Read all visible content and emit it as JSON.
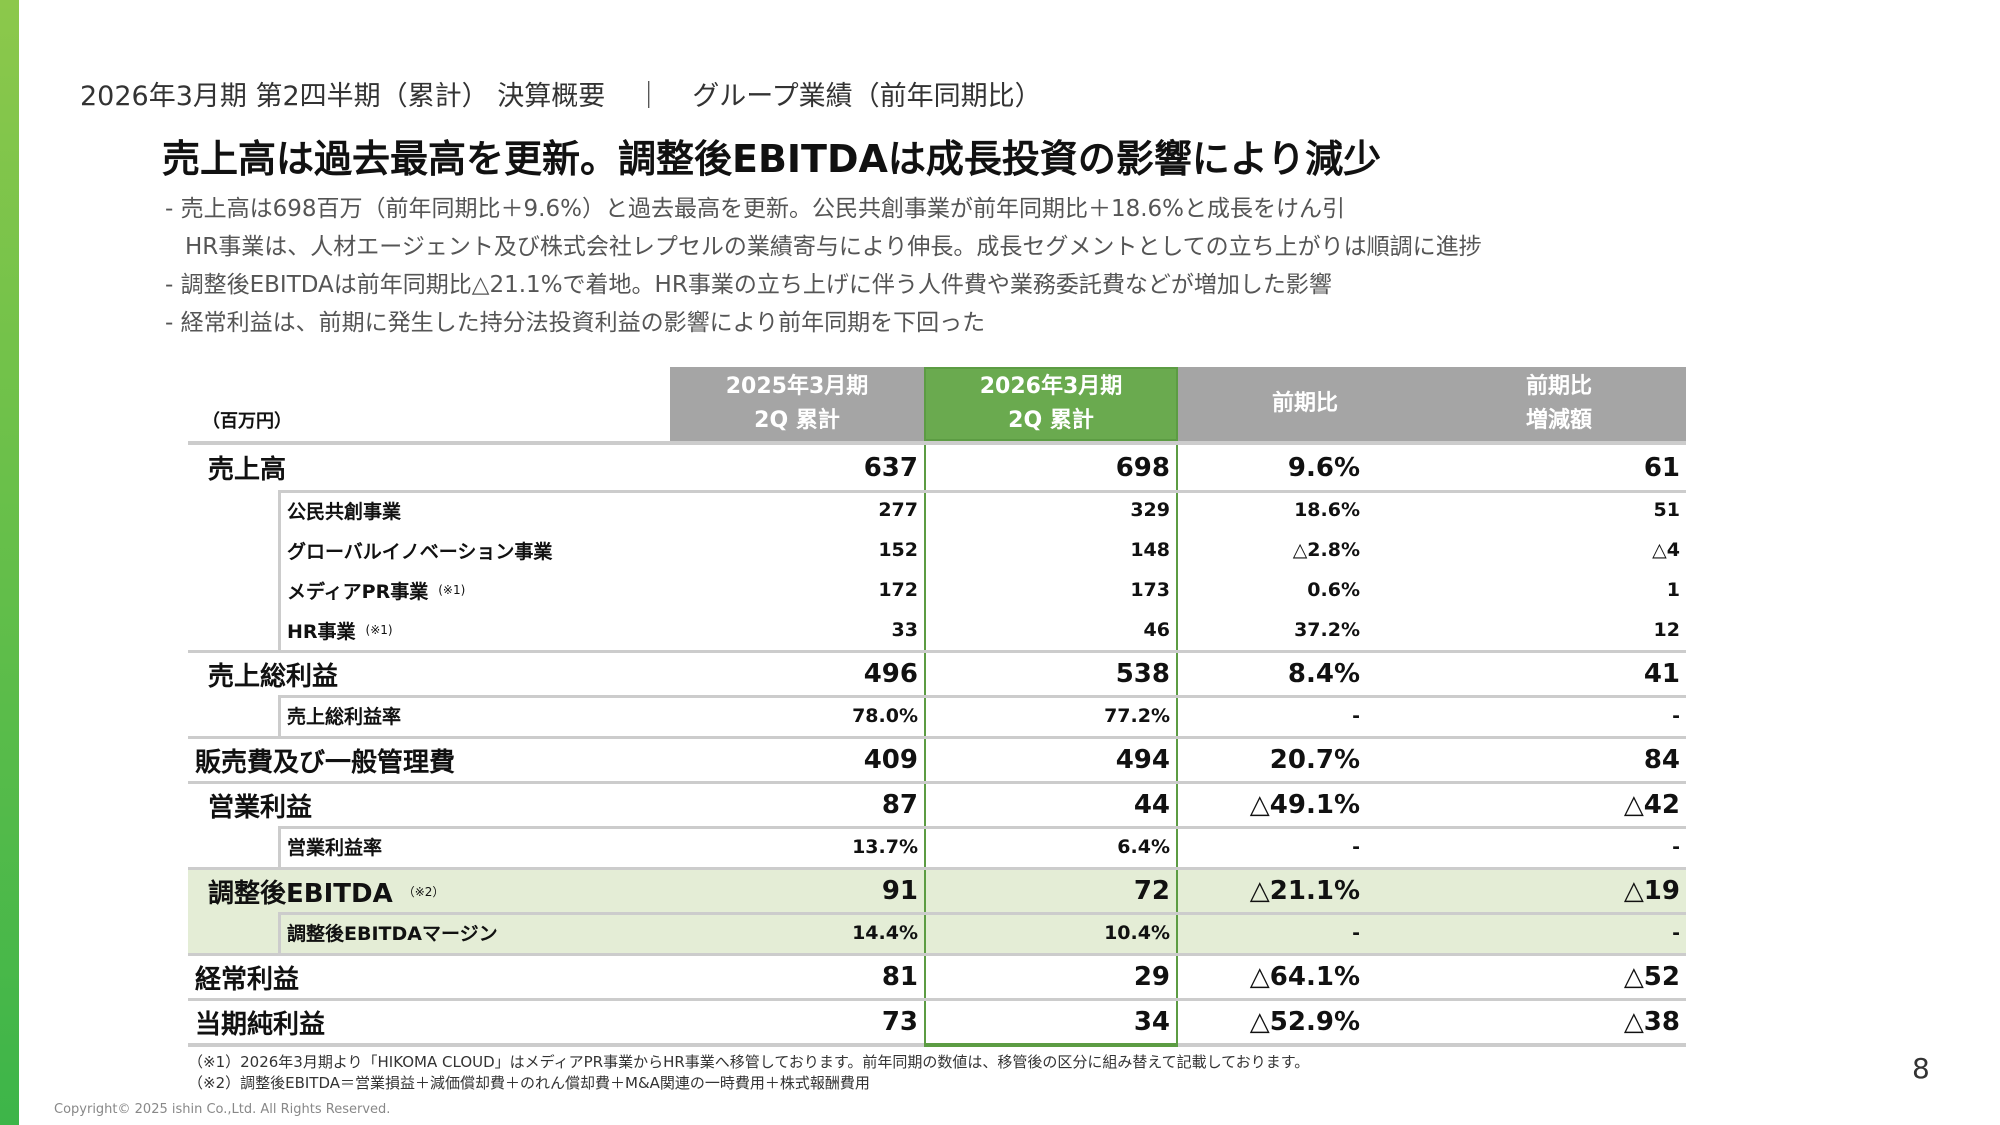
{
  "header": {
    "section": "2026年3月期 第2四半期（累計） 決算概要",
    "separator": "｜",
    "subsection": "グループ業績（前年同期比）"
  },
  "title": "売上高は過去最高を更新。調整後EBITDAは成長投資の影響により減少",
  "bullets": [
    "- 売上高は698百万（前年同期比＋9.6%）と過去最高を更新。公民共創事業が前年同期比＋18.6%と成長をけん引",
    "HR事業は、人材エージェント及び株式会社レプセルの業績寄与により伸長。成長セグメントとしての立ち上がりは順調に進捗",
    "- 調整後EBITDAは前年同期比△21.1%で着地。HR事業の立ち上げに伴う人件費や業務委託費などが増加した影響",
    "- 経常利益は、前期に発生した持分法投資利益の影響により前年同期を下回った"
  ],
  "table": {
    "unit": "（百万円）",
    "columns": [
      {
        "l1": "2025年3月期",
        "l2": "2Q 累計"
      },
      {
        "l1": "2026年3月期",
        "l2": "2Q 累計"
      },
      {
        "l1": "前期比",
        "l2": ""
      },
      {
        "l1": "前期比",
        "l2": "増減額"
      }
    ],
    "rows": [
      {
        "label": "売上高",
        "note": "",
        "values": [
          "637",
          "698",
          "9.6%",
          "61"
        ]
      },
      {
        "label": "公民共創事業",
        "note": "",
        "values": [
          "277",
          "329",
          "18.6%",
          "51"
        ]
      },
      {
        "label": "グローバルイノベーション事業",
        "note": "",
        "values": [
          "152",
          "148",
          "△2.8%",
          "△4"
        ]
      },
      {
        "label": "メディアPR事業",
        "note": "(※1)",
        "values": [
          "172",
          "173",
          "0.6%",
          "1"
        ]
      },
      {
        "label": "HR事業",
        "note": "(※1)",
        "values": [
          "33",
          "46",
          "37.2%",
          "12"
        ]
      },
      {
        "label": "売上総利益",
        "note": "",
        "values": [
          "496",
          "538",
          "8.4%",
          "41"
        ]
      },
      {
        "label": "売上総利益率",
        "note": "",
        "values": [
          "78.0%",
          "77.2%",
          "-",
          "-"
        ]
      },
      {
        "label": "販売費及び一般管理費",
        "note": "",
        "values": [
          "409",
          "494",
          "20.7%",
          "84"
        ]
      },
      {
        "label": "営業利益",
        "note": "",
        "values": [
          "87",
          "44",
          "△49.1%",
          "△42"
        ]
      },
      {
        "label": "営業利益率",
        "note": "",
        "values": [
          "13.7%",
          "6.4%",
          "-",
          "-"
        ]
      },
      {
        "label": "調整後EBITDA",
        "note": "（※2）",
        "values": [
          "91",
          "72",
          "△21.1%",
          "△19"
        ]
      },
      {
        "label": "調整後EBITDAマージン",
        "note": "",
        "values": [
          "14.4%",
          "10.4%",
          "-",
          "-"
        ]
      },
      {
        "label": "経常利益",
        "note": "",
        "values": [
          "81",
          "29",
          "△64.1%",
          "△52"
        ]
      },
      {
        "label": "当期純利益",
        "note": "",
        "values": [
          "73",
          "34",
          "△52.9%",
          "△38"
        ]
      }
    ]
  },
  "footnotes": [
    "（※1）2026年3月期より「HIKOMA CLOUD」はメディアPR事業からHR事業へ移管しております。前年同期の数値は、移管後の区分に組み替えて記載しております。",
    "（※2）調整後EBITDA＝営業損益＋減価償却費＋のれん償却費＋M&A関連の一時費用＋株式報酬費用"
  ],
  "copyright": "Copyright©  2025 ishin Co.,Ltd. All Rights Reserved.",
  "page_number": "8"
}
